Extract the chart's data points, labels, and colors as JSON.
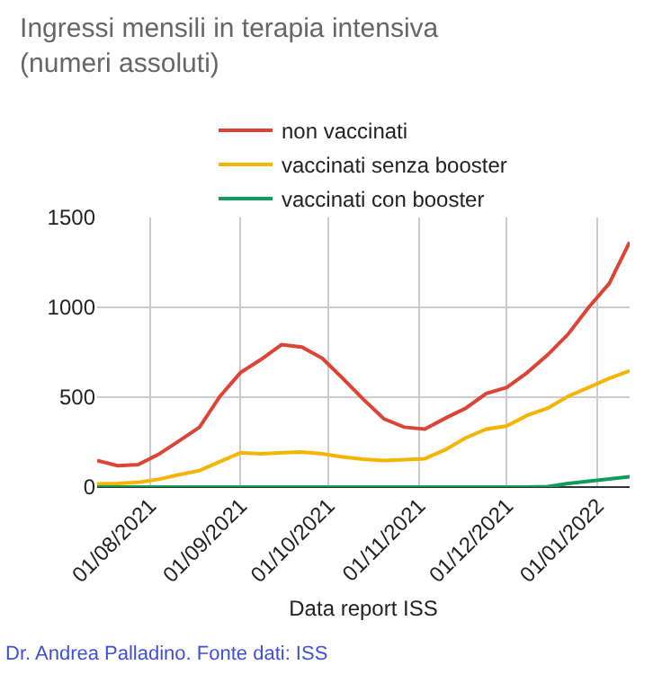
{
  "chart_data": {
    "type": "line",
    "title": "Ingressi mensili in terapia intensiva\n(numeri assoluti)",
    "xlabel": "Data report ISS",
    "x": [
      "2021-07-14",
      "2021-07-21",
      "2021-07-28",
      "2021-08-04",
      "2021-08-11",
      "2021-08-18",
      "2021-08-25",
      "2021-09-01",
      "2021-09-08",
      "2021-09-15",
      "2021-09-22",
      "2021-09-29",
      "2021-10-06",
      "2021-10-13",
      "2021-10-20",
      "2021-10-27",
      "2021-11-03",
      "2021-11-10",
      "2021-11-17",
      "2021-11-24",
      "2021-12-01",
      "2021-12-08",
      "2021-12-15",
      "2021-12-22",
      "2021-12-29",
      "2022-01-05",
      "2022-01-12"
    ],
    "series": [
      {
        "name": "non vaccinati",
        "color": "#db4437",
        "values": [
          148,
          119,
          125,
          182,
          257,
          333,
          505,
          637,
          710,
          792,
          779,
          716,
          604,
          488,
          380,
          333,
          323,
          383,
          439,
          521,
          554,
          637,
          736,
          851,
          1000,
          1132,
          1363
        ]
      },
      {
        "name": "vaccinati senza booster",
        "color": "#f4b400",
        "values": [
          17,
          20,
          26,
          43,
          69,
          92,
          142,
          191,
          185,
          191,
          195,
          185,
          168,
          155,
          148,
          152,
          158,
          208,
          274,
          323,
          340,
          399,
          439,
          505,
          554,
          604,
          647
        ]
      },
      {
        "name": "vaccinati con booster",
        "color": "#0f9d58",
        "values": [
          0,
          0,
          0,
          0,
          0,
          0,
          0,
          0,
          0,
          0,
          0,
          0,
          0,
          0,
          0,
          0,
          0,
          0,
          0,
          0,
          0,
          0,
          2,
          20,
          33,
          45,
          58
        ]
      }
    ],
    "xlim": [
      "2021-07-14",
      "2022-01-12"
    ],
    "xticks": [
      {
        "value": "2021-08-01",
        "label": "01/08/2021"
      },
      {
        "value": "2021-09-01",
        "label": "01/09/2021"
      },
      {
        "value": "2021-10-01",
        "label": "01/10/2021"
      },
      {
        "value": "2021-11-01",
        "label": "01/11/2021"
      },
      {
        "value": "2021-12-01",
        "label": "01/12/2021"
      },
      {
        "value": "2022-01-01",
        "label": "01/01/2022"
      }
    ],
    "ylim": [
      0,
      1500
    ],
    "yticks": [
      0,
      500,
      1000,
      1500
    ],
    "grid": true,
    "legend": "top",
    "marker": "none",
    "line_style": "solid",
    "annotations": [
      "Dr. Andrea Palladino. Fonte dati: ISS"
    ]
  }
}
